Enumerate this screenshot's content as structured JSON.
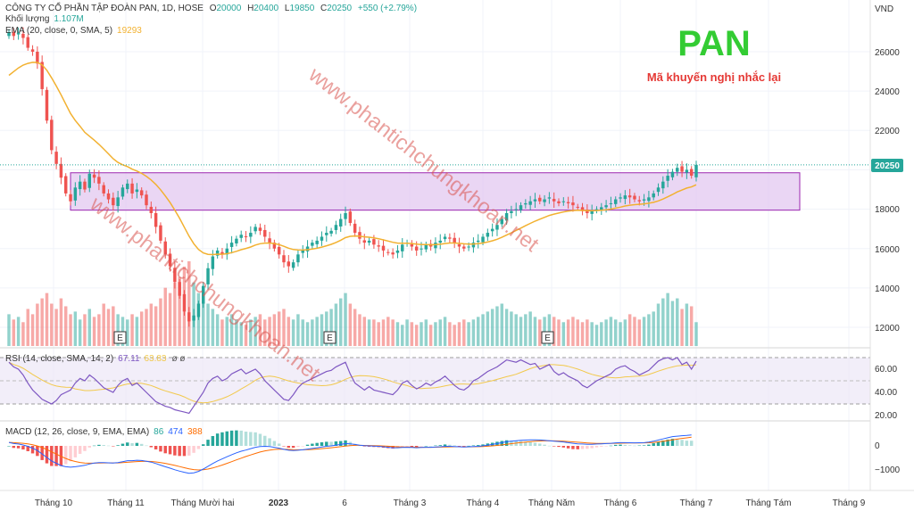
{
  "header": {
    "symbol_line": "CÔNG TY CỔ PHẦN TẬP ĐOÀN PAN, 1D, HOSE",
    "open_label": "O",
    "open": "20000",
    "high_label": "H",
    "high": "20400",
    "low_label": "L",
    "low": "19850",
    "close_label": "C",
    "close": "20250",
    "change": "+550 (+2.79%)",
    "volume_label": "Khối lượng",
    "volume_value": "1.107M",
    "ema_label": "EMA (20, close, 0, SMA, 5)",
    "ema_value": "19293"
  },
  "currency": "VND",
  "overlay": {
    "title": "PAN",
    "subtitle": "Mã khuyến nghị nhắc lại"
  },
  "watermark": "www.phantichchungkhoan.net",
  "colors": {
    "up": "#26a69a",
    "down": "#ef5350",
    "ema": "#f2b130",
    "zone_fill": "#e3c8f0",
    "zone_stroke": "#9c27b0",
    "rsi": "#7e57c2",
    "rsi_ma": "#f2c94c",
    "macd_line": "#2962ff",
    "signal_line": "#ff6d00",
    "title_green": "#33cc33",
    "subtitle_red": "#e53935"
  },
  "rsi_label": "RSI (14, close, SMA, 14, 2)",
  "rsi_value": "67.11",
  "rsi_ma_value": "63.83",
  "macd_label": "MACD (12, 26, close, 9, EMA, EMA)",
  "macd_hist_value": "86",
  "macd_value": "474",
  "signal_value": "388",
  "events": [
    {
      "label": "E"
    },
    {
      "label": "E"
    },
    {
      "label": "E"
    }
  ],
  "chart_data": {
    "type": "candlestick",
    "interval": "1D",
    "price_axis": {
      "ticks": [
        "26000",
        "24000",
        "22000",
        "18000",
        "16000",
        "14000",
        "12000"
      ],
      "last_price_label": "20250",
      "range": [
        11000,
        28000
      ]
    },
    "x_axis_labels": [
      "Tháng 10",
      "Tháng 11",
      "Tháng Mười hai",
      "2023",
      "6",
      "Tháng 3",
      "Tháng 4",
      "Tháng Năm",
      "Tháng 6",
      "Tháng 7",
      "Tháng Tám",
      "Tháng 9"
    ],
    "resistance_zone": {
      "low": 17950,
      "high": 19850
    },
    "closes": [
      27000,
      26800,
      26950,
      26700,
      26200,
      26000,
      25400,
      24100,
      22500,
      21000,
      20300,
      19600,
      18800,
      18400,
      19100,
      19400,
      19000,
      19800,
      19600,
      19300,
      18800,
      18500,
      18200,
      18600,
      19100,
      19300,
      18800,
      19000,
      18700,
      18200,
      17800,
      17100,
      16400,
      15700,
      15100,
      14300,
      13600,
      12800,
      12300,
      12600,
      13200,
      14100,
      15000,
      15600,
      15900,
      15700,
      16000,
      16300,
      16500,
      16700,
      16600,
      16800,
      17100,
      16900,
      16600,
      16300,
      16000,
      15700,
      15300,
      15100,
      15300,
      15700,
      15900,
      16100,
      16300,
      16400,
      16600,
      16800,
      16900,
      17200,
      17500,
      17800,
      17300,
      16800,
      16500,
      16300,
      16400,
      16200,
      16100,
      15900,
      15800,
      15700,
      15900,
      16200,
      16300,
      16100,
      15900,
      16000,
      16200,
      16100,
      16300,
      16400,
      16600,
      16500,
      16300,
      16100,
      16000,
      16100,
      16300,
      16400,
      16600,
      16800,
      17000,
      17200,
      17500,
      17800,
      17900,
      18000,
      18200,
      18300,
      18400,
      18500,
      18400,
      18500,
      18600,
      18400,
      18300,
      18400,
      18300,
      18200,
      18100,
      17900,
      17800,
      17900,
      18000,
      18100,
      18200,
      18300,
      18500,
      18600,
      18700,
      18600,
      18500,
      18400,
      18500,
      18600,
      18800,
      19100,
      19400,
      19700,
      19900,
      20100,
      19900,
      20000,
      19700,
      20250
    ],
    "volumes": [
      0.6,
      0.5,
      0.55,
      0.45,
      0.7,
      0.6,
      0.8,
      0.9,
      1.0,
      0.8,
      0.7,
      0.9,
      0.75,
      0.6,
      0.65,
      0.5,
      0.6,
      0.7,
      0.55,
      0.6,
      0.8,
      0.7,
      0.75,
      0.6,
      0.55,
      0.5,
      0.6,
      0.55,
      0.65,
      0.7,
      0.8,
      0.75,
      0.9,
      1.1,
      1.0,
      1.2,
      1.3,
      1.5,
      1.6,
      1.2,
      1.0,
      0.9,
      0.8,
      0.7,
      0.6,
      0.5,
      0.55,
      0.6,
      0.5,
      0.45,
      0.4,
      0.5,
      0.55,
      0.6,
      0.5,
      0.55,
      0.6,
      0.65,
      0.7,
      0.55,
      0.5,
      0.6,
      0.5,
      0.45,
      0.5,
      0.55,
      0.6,
      0.65,
      0.7,
      0.8,
      0.9,
      1.0,
      0.8,
      0.7,
      0.6,
      0.55,
      0.5,
      0.5,
      0.45,
      0.5,
      0.55,
      0.5,
      0.45,
      0.4,
      0.5,
      0.45,
      0.4,
      0.45,
      0.5,
      0.4,
      0.45,
      0.5,
      0.55,
      0.45,
      0.4,
      0.45,
      0.5,
      0.45,
      0.5,
      0.55,
      0.6,
      0.65,
      0.7,
      0.75,
      0.8,
      0.7,
      0.65,
      0.6,
      0.55,
      0.6,
      0.65,
      0.55,
      0.5,
      0.55,
      0.6,
      0.55,
      0.5,
      0.45,
      0.5,
      0.55,
      0.5,
      0.45,
      0.5,
      0.45,
      0.4,
      0.45,
      0.5,
      0.55,
      0.5,
      0.45,
      0.5,
      0.6,
      0.55,
      0.5,
      0.55,
      0.6,
      0.65,
      0.8,
      0.9,
      1.0,
      0.85,
      0.9,
      0.7,
      0.8,
      0.75,
      0.45
    ],
    "rsi_axis": {
      "ticks": [
        "60.00",
        "40.00",
        "20.00"
      ],
      "upper": 70,
      "lower": 30
    },
    "rsi": [
      66,
      62,
      60,
      55,
      48,
      42,
      38,
      34,
      32,
      30,
      33,
      38,
      40,
      42,
      48,
      52,
      50,
      55,
      52,
      48,
      44,
      42,
      40,
      46,
      50,
      52,
      46,
      48,
      44,
      40,
      36,
      32,
      30,
      28,
      27,
      25,
      24,
      23,
      22,
      28,
      34,
      40,
      48,
      52,
      54,
      50,
      52,
      56,
      58,
      60,
      56,
      58,
      60,
      56,
      50,
      46,
      42,
      38,
      34,
      33,
      38,
      44,
      48,
      50,
      52,
      54,
      56,
      58,
      59,
      62,
      64,
      66,
      56,
      48,
      45,
      42,
      45,
      42,
      41,
      40,
      39,
      38,
      42,
      48,
      50,
      46,
      43,
      45,
      48,
      46,
      49,
      51,
      54,
      50,
      46,
      43,
      42,
      45,
      50,
      52,
      55,
      58,
      60,
      62,
      65,
      68,
      67,
      66,
      68,
      66,
      64,
      65,
      60,
      62,
      64,
      58,
      55,
      57,
      54,
      52,
      50,
      46,
      44,
      47,
      50,
      52,
      54,
      56,
      60,
      62,
      63,
      60,
      58,
      55,
      57,
      59,
      63,
      67,
      69,
      70,
      68,
      70,
      64,
      66,
      60,
      67
    ],
    "macd_axis": {
      "ticks": [
        "0",
        "−1000"
      ]
    },
    "macd": [
      150,
      100,
      80,
      40,
      -20,
      -100,
      -200,
      -350,
      -500,
      -650,
      -750,
      -850,
      -900,
      -920,
      -900,
      -870,
      -840,
      -780,
      -740,
      -720,
      -720,
      -730,
      -740,
      -720,
      -680,
      -640,
      -640,
      -620,
      -630,
      -660,
      -700,
      -760,
      -830,
      -900,
      -960,
      -1030,
      -1090,
      -1140,
      -1180,
      -1160,
      -1100,
      -1000,
      -880,
      -760,
      -650,
      -560,
      -470,
      -380,
      -300,
      -230,
      -180,
      -120,
      -60,
      -30,
      -20,
      -30,
      -60,
      -100,
      -150,
      -190,
      -200,
      -190,
      -170,
      -140,
      -110,
      -80,
      -50,
      -20,
      0,
      30,
      60,
      100,
      90,
      60,
      30,
      10,
      0,
      -10,
      -20,
      -40,
      -60,
      -80,
      -80,
      -70,
      -60,
      -70,
      -80,
      -70,
      -60,
      -60,
      -50,
      -40,
      -20,
      -20,
      -30,
      -40,
      -50,
      -40,
      -30,
      -20,
      0,
      30,
      60,
      100,
      140,
      180,
      200,
      220,
      240,
      250,
      260,
      260,
      255,
      240,
      220,
      205,
      190,
      170,
      140,
      110,
      90,
      80,
      70,
      70,
      80,
      90,
      100,
      110,
      130,
      140,
      140,
      135,
      130,
      135,
      140,
      160,
      200,
      250,
      300,
      350,
      400,
      420,
      440,
      450,
      474
    ]
  }
}
